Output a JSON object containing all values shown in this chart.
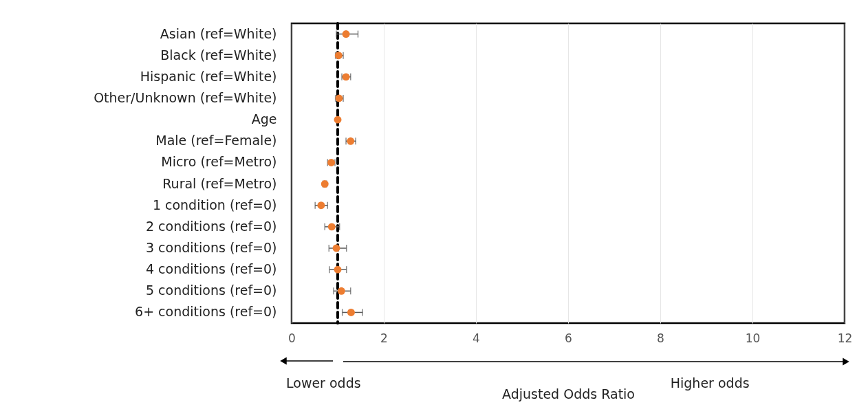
{
  "chart_data": {
    "type": "scatter",
    "xlabel": "Adjusted Odds Ratio",
    "categories": [
      "Asian (ref=White)",
      "Black (ref=White)",
      "Hispanic (ref=White)",
      "Other/Unknown (ref=White)",
      "Age",
      "Male (ref=Female)",
      "Micro (ref=Metro)",
      "Rural (ref=Metro)",
      "1 condition (ref=0)",
      "2 conditions (ref=0)",
      "3 conditions (ref=0)",
      "4 conditions (ref=0)",
      "5 conditions (ref=0)",
      "6+ conditions (ref=0)"
    ],
    "orientation": "horizontal",
    "series": [
      {
        "color": "#ed7d31",
        "values": [
          1.18,
          1.02,
          1.18,
          1.03,
          1.0,
          1.28,
          0.86,
          0.72,
          0.64,
          0.87,
          0.97,
          1.0,
          1.08,
          1.29
        ],
        "errors": [
          [
            0.97,
            1.44
          ],
          [
            0.95,
            1.12
          ],
          [
            1.09,
            1.28
          ],
          [
            0.95,
            1.12
          ],
          null,
          [
            1.18,
            1.39
          ],
          [
            0.78,
            0.94
          ],
          [
            0.68,
            0.76
          ],
          [
            0.51,
            0.78
          ],
          [
            0.72,
            1.04
          ],
          [
            0.81,
            1.19
          ],
          [
            0.82,
            1.19
          ],
          [
            0.91,
            1.28
          ],
          [
            1.1,
            1.54
          ]
        ]
      }
    ],
    "xlim": [
      0,
      12
    ],
    "xticks": [
      0,
      2,
      4,
      6,
      8,
      10,
      12
    ],
    "grid": "x",
    "marker": "circle",
    "ref_lines": [
      {
        "axis": "x",
        "value": 1,
        "color": "#000000",
        "line_style": "dashed"
      }
    ],
    "annotations": [
      "Lower odds",
      "Higher odds"
    ]
  }
}
